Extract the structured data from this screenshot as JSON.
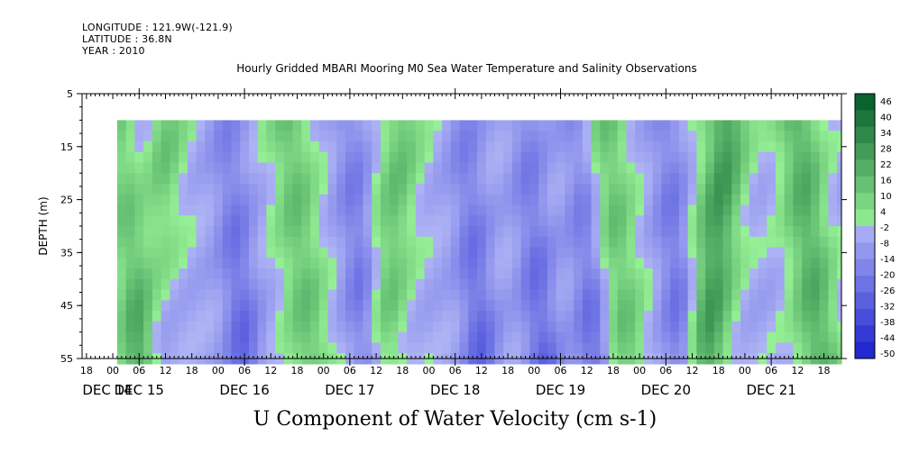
{
  "header": {
    "longitude": "LONGITUDE : 121.9W(-121.9)",
    "latitude": "LATITUDE : 36.8N",
    "year": "YEAR : 2010"
  },
  "chart_data": {
    "type": "heatmap",
    "title": "Hourly Gridded MBARI Mooring M0 Sea Water Temperature and Salinity Observations",
    "xlabel": "U Component of Water Velocity (cm s-1)",
    "ylabel": "DEPTH (m)",
    "ylim": [
      5,
      55
    ],
    "y_ticks": [
      "5",
      "15",
      "25",
      "35",
      "45",
      "55"
    ],
    "y_tick_values": [
      5,
      15,
      25,
      35,
      45,
      55
    ],
    "x_hour_ticks": [
      "18",
      "00",
      "06",
      "12",
      "18",
      "00",
      "06",
      "12",
      "18",
      "00",
      "06",
      "12",
      "18",
      "00",
      "06",
      "12",
      "18",
      "00",
      "06",
      "12",
      "18",
      "00",
      "06",
      "12",
      "18",
      "00",
      "06",
      "12",
      "18",
      "00",
      "06",
      "12"
    ],
    "x_day_labels": [
      "DEC 14",
      "DEC 15",
      "DEC 16",
      "DEC 17",
      "DEC 18",
      "DEC 19",
      "DEC 20",
      "DEC 21"
    ],
    "x_range_hours": [
      "2010-12-14 11:00",
      "2010-12-21 16:00"
    ],
    "data_start": "2010-12-14 19:00",
    "data_depth_range": [
      10,
      55
    ],
    "colorbar": {
      "labels": [
        "46",
        "40",
        "34",
        "28",
        "22",
        "16",
        "10",
        "4",
        "-2",
        "-8",
        "-14",
        "-20",
        "-26",
        "-32",
        "-38",
        "-44",
        "-50"
      ],
      "levels": [
        46,
        40,
        34,
        28,
        22,
        16,
        10,
        4,
        -2,
        -8,
        -14,
        -20,
        -26,
        -32,
        -38,
        -44,
        -50
      ]
    },
    "field_sign_pattern": {
      "green_bands_dates": [
        "2010-12-14 20:00",
        "2010-12-15 06:00",
        "2010-12-16 10:00",
        "2010-12-17 12:00",
        "2010-12-19 10:00",
        "2010-12-20 14:00",
        "2010-12-21 06:00"
      ],
      "blue_bands_dates": [
        "2010-12-15 00:00",
        "2010-12-15 20:00",
        "2010-12-17 00:00",
        "2010-12-18 02:00",
        "2010-12-18 16:00",
        "2010-12-19 04:00",
        "2010-12-20 00:00"
      ]
    }
  }
}
